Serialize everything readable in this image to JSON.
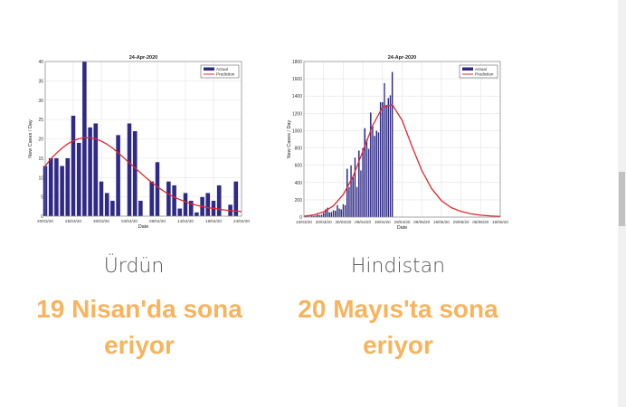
{
  "colors": {
    "bar": "#2e2a86",
    "prediction": "#e8262a",
    "status": "#f8b35c"
  },
  "panels": [
    {
      "country": "Ürdün",
      "status_line1": "19 Nisan'da sona",
      "status_line2": "eriyor"
    },
    {
      "country": "Hindistan",
      "status_line1": "20 Mayıs'ta sona",
      "status_line2": "eriyor"
    }
  ],
  "chart_data": [
    {
      "type": "bar",
      "title": "24-Apr-2020",
      "xlabel": "Date",
      "ylabel": "New Cases / Day",
      "ylim": [
        0,
        40
      ],
      "yticks": [
        0,
        5,
        10,
        15,
        20,
        25,
        30,
        35,
        40
      ],
      "xticks": [
        "20/03/20",
        "25/03/20",
        "30/03/20",
        "04/04/20",
        "09/04/20",
        "14/04/20",
        "19/04/20",
        "24/04/20"
      ],
      "start_date": "20/03/20",
      "days": 36,
      "grid": true,
      "legend": "top-right",
      "series": [
        {
          "name": "Actual",
          "type": "bar",
          "values": [
            13,
            15,
            15,
            13,
            15,
            26,
            19,
            40,
            23,
            24,
            9,
            6,
            4,
            21,
            0,
            24,
            22,
            4,
            0,
            9,
            14,
            0,
            9,
            8,
            2,
            6,
            4,
            1,
            5,
            6,
            4,
            8,
            0,
            3,
            9
          ]
        },
        {
          "name": "Prediction",
          "type": "line",
          "values": [
            13,
            14.8,
            16.3,
            17.6,
            18.7,
            19.5,
            20.0,
            20.3,
            20.3,
            20.0,
            19.4,
            18.6,
            17.6,
            16.4,
            15.1,
            13.8,
            12.5,
            11.2,
            9.9,
            8.7,
            7.6,
            6.6,
            5.7,
            4.9,
            4.3,
            3.7,
            3.2,
            2.8,
            2.5,
            2.2,
            2.0,
            1.8,
            1.6,
            1.4,
            1.3,
            1.2
          ]
        }
      ]
    },
    {
      "type": "bar",
      "title": "24-Apr-2020",
      "xlabel": "Date",
      "ylabel": "New Cases / Day",
      "ylim": [
        0,
        1800
      ],
      "yticks": [
        0,
        200,
        400,
        600,
        800,
        1000,
        1200,
        1400,
        1600,
        1800
      ],
      "xticks": [
        "10/03/20",
        "20/03/20",
        "30/03/20",
        "09/04/20",
        "19/04/20",
        "29/04/20",
        "09/05/20",
        "19/05/20",
        "29/05/20",
        "08/06/20",
        "18/06/20"
      ],
      "start_date": "10/03/20",
      "days": 101,
      "grid": true,
      "legend": "top-right",
      "series": [
        {
          "name": "Actual",
          "type": "bar",
          "values": [
            5,
            10,
            12,
            10,
            20,
            15,
            20,
            30,
            25,
            30,
            50,
            90,
            110,
            55,
            60,
            80,
            75,
            140,
            100,
            90,
            150,
            140,
            560,
            350,
            600,
            460,
            690,
            350,
            770,
            540,
            800,
            1030,
            900,
            790,
            1210,
            1050,
            940,
            1000,
            980,
            1330,
            1330,
            1550,
            1300,
            1380,
            1410,
            1680
          ]
        },
        {
          "name": "Prediction",
          "type": "line",
          "step_days": 5,
          "values": [
            10,
            25,
            60,
            130,
            260,
            470,
            760,
            1060,
            1270,
            1300,
            1120,
            820,
            540,
            330,
            190,
            110,
            65,
            38,
            22,
            13,
            8
          ]
        }
      ]
    }
  ]
}
